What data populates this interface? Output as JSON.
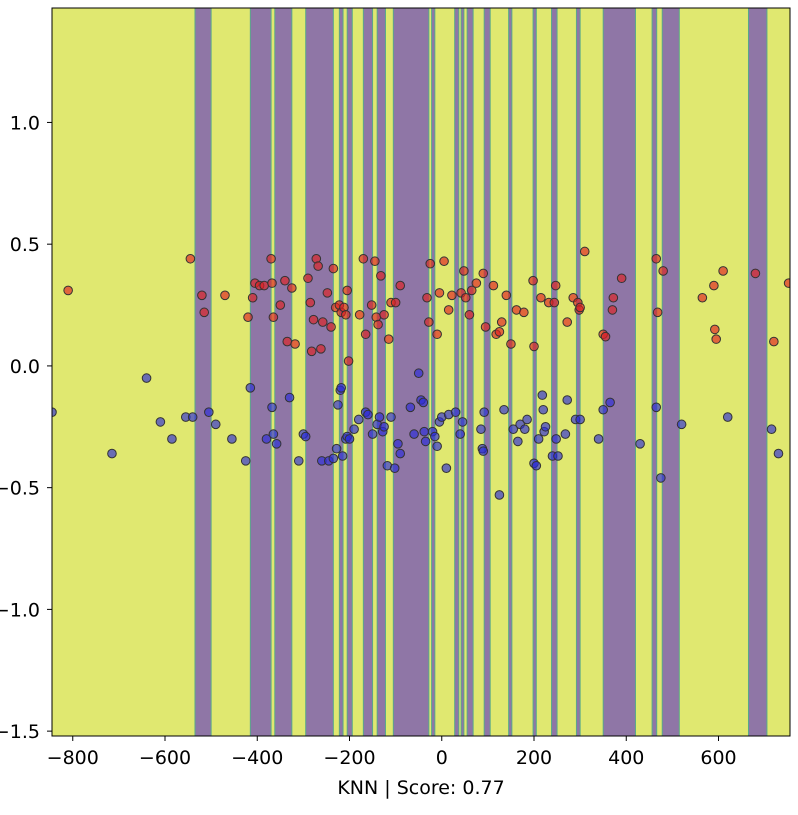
{
  "chart_data": {
    "type": "scatter",
    "title": "",
    "xlabel": "KNN | Score: 0.77",
    "ylabel": "",
    "xlim": [
      -845,
      755
    ],
    "ylim": [
      -1.52,
      1.47
    ],
    "xticks": [
      -800,
      -600,
      -400,
      -200,
      0,
      200,
      400,
      600
    ],
    "xtick_labels": [
      "−800",
      "−600",
      "−400",
      "−200",
      "0",
      "200",
      "400",
      "600"
    ],
    "yticks": [
      -1.5,
      -1.0,
      -0.5,
      0.0,
      0.5,
      1.0
    ],
    "ytick_labels": [
      "−1.5",
      "−1.0",
      "−0.5",
      "0.0",
      "0.5",
      "1.0"
    ],
    "grid": false,
    "colors": {
      "region_class_0": "#e0e870",
      "region_class_1": "#8f76a6",
      "boundary": "#5aa88a",
      "point_class_0": "#2b2bd8",
      "point_class_1": "#e02020",
      "point_edge": "#333333"
    },
    "decision_regions_class_1": [
      [
        -535,
        -500
      ],
      [
        -415,
        -370
      ],
      [
        -362,
        -325
      ],
      [
        -295,
        -235
      ],
      [
        -222,
        -214
      ],
      [
        -205,
        -194
      ],
      [
        -170,
        -150
      ],
      [
        -140,
        -122
      ],
      [
        -105,
        -28
      ],
      [
        -22,
        -15
      ],
      [
        28,
        37
      ],
      [
        42,
        48
      ],
      [
        55,
        68
      ],
      [
        92,
        105
      ],
      [
        145,
        152
      ],
      [
        198,
        205
      ],
      [
        238,
        250
      ],
      [
        292,
        300
      ],
      [
        350,
        420
      ],
      [
        456,
        466
      ],
      [
        478,
        515
      ],
      [
        665,
        705
      ]
    ],
    "series": [
      {
        "class": 1,
        "points": [
          [
            -810,
            0.31
          ],
          [
            -545,
            0.44
          ],
          [
            -520,
            0.29
          ],
          [
            -515,
            0.22
          ],
          [
            -470,
            0.29
          ],
          [
            -420,
            0.2
          ],
          [
            -410,
            0.28
          ],
          [
            -405,
            0.34
          ],
          [
            -395,
            0.33
          ],
          [
            -385,
            0.33
          ],
          [
            -370,
            0.44
          ],
          [
            -368,
            0.34
          ],
          [
            -365,
            0.2
          ],
          [
            -350,
            0.25
          ],
          [
            -340,
            0.35
          ],
          [
            -335,
            0.1
          ],
          [
            -325,
            0.32
          ],
          [
            -318,
            0.09
          ],
          [
            -290,
            0.36
          ],
          [
            -285,
            0.26
          ],
          [
            -282,
            0.06
          ],
          [
            -278,
            0.19
          ],
          [
            -272,
            0.44
          ],
          [
            -268,
            0.41
          ],
          [
            -262,
            0.07
          ],
          [
            -258,
            0.18
          ],
          [
            -248,
            0.3
          ],
          [
            -240,
            0.16
          ],
          [
            -235,
            0.4
          ],
          [
            -230,
            0.24
          ],
          [
            -222,
            0.25
          ],
          [
            -218,
            0.22
          ],
          [
            -212,
            0.24
          ],
          [
            -208,
            0.21
          ],
          [
            -205,
            0.31
          ],
          [
            -202,
            0.02
          ],
          [
            -178,
            0.21
          ],
          [
            -170,
            0.44
          ],
          [
            -165,
            0.13
          ],
          [
            -152,
            0.25
          ],
          [
            -145,
            0.43
          ],
          [
            -142,
            0.2
          ],
          [
            -138,
            0.17
          ],
          [
            -132,
            0.37
          ],
          [
            -125,
            0.21
          ],
          [
            -115,
            0.11
          ],
          [
            -110,
            0.26
          ],
          [
            -100,
            0.26
          ],
          [
            -90,
            0.33
          ],
          [
            -32,
            0.28
          ],
          [
            -28,
            0.18
          ],
          [
            -25,
            0.42
          ],
          [
            -10,
            0.13
          ],
          [
            -5,
            0.3
          ],
          [
            5,
            0.43
          ],
          [
            15,
            0.23
          ],
          [
            22,
            0.29
          ],
          [
            42,
            0.3
          ],
          [
            48,
            0.39
          ],
          [
            52,
            0.28
          ],
          [
            60,
            0.21
          ],
          [
            65,
            0.31
          ],
          [
            75,
            0.34
          ],
          [
            90,
            0.38
          ],
          [
            95,
            0.16
          ],
          [
            112,
            0.33
          ],
          [
            118,
            0.13
          ],
          [
            125,
            0.14
          ],
          [
            130,
            0.18
          ],
          [
            140,
            0.29
          ],
          [
            150,
            0.09
          ],
          [
            162,
            0.23
          ],
          [
            178,
            0.22
          ],
          [
            198,
            0.35
          ],
          [
            200,
            0.08
          ],
          [
            215,
            0.28
          ],
          [
            232,
            0.26
          ],
          [
            244,
            0.26
          ],
          [
            247,
            0.33
          ],
          [
            272,
            0.18
          ],
          [
            285,
            0.28
          ],
          [
            295,
            0.26
          ],
          [
            298,
            0.23
          ],
          [
            300,
            0.24
          ],
          [
            310,
            0.47
          ],
          [
            350,
            0.13
          ],
          [
            355,
            0.12
          ],
          [
            370,
            0.23
          ],
          [
            372,
            0.28
          ],
          [
            390,
            0.36
          ],
          [
            465,
            0.44
          ],
          [
            468,
            0.22
          ],
          [
            480,
            0.39
          ],
          [
            565,
            0.28
          ],
          [
            590,
            0.33
          ],
          [
            592,
            0.15
          ],
          [
            595,
            0.11
          ],
          [
            610,
            0.39
          ],
          [
            680,
            0.38
          ],
          [
            720,
            0.1
          ],
          [
            752,
            0.34
          ]
        ]
      },
      {
        "class": 0,
        "points": [
          [
            -845,
            -0.19
          ],
          [
            -715,
            -0.36
          ],
          [
            -640,
            -0.05
          ],
          [
            -610,
            -0.23
          ],
          [
            -585,
            -0.3
          ],
          [
            -555,
            -0.21
          ],
          [
            -540,
            -0.21
          ],
          [
            -505,
            -0.19
          ],
          [
            -490,
            -0.24
          ],
          [
            -455,
            -0.3
          ],
          [
            -425,
            -0.39
          ],
          [
            -415,
            -0.09
          ],
          [
            -380,
            -0.3
          ],
          [
            -368,
            -0.17
          ],
          [
            -365,
            -0.28
          ],
          [
            -358,
            -0.32
          ],
          [
            -330,
            -0.13
          ],
          [
            -310,
            -0.39
          ],
          [
            -300,
            -0.28
          ],
          [
            -295,
            -0.29
          ],
          [
            -260,
            -0.39
          ],
          [
            -245,
            -0.39
          ],
          [
            -235,
            -0.38
          ],
          [
            -228,
            -0.34
          ],
          [
            -225,
            -0.16
          ],
          [
            -220,
            -0.1
          ],
          [
            -218,
            -0.09
          ],
          [
            -215,
            -0.37
          ],
          [
            -208,
            -0.3
          ],
          [
            -205,
            -0.29
          ],
          [
            -200,
            -0.3
          ],
          [
            -190,
            -0.26
          ],
          [
            -180,
            -0.22
          ],
          [
            -165,
            -0.19
          ],
          [
            -160,
            -0.2
          ],
          [
            -150,
            -0.28
          ],
          [
            -140,
            -0.24
          ],
          [
            -135,
            -0.21
          ],
          [
            -128,
            -0.27
          ],
          [
            -125,
            -0.25
          ],
          [
            -118,
            -0.41
          ],
          [
            -110,
            -0.21
          ],
          [
            -102,
            -0.42
          ],
          [
            -95,
            -0.32
          ],
          [
            -90,
            -0.36
          ],
          [
            -68,
            -0.17
          ],
          [
            -60,
            -0.28
          ],
          [
            -50,
            -0.03
          ],
          [
            -45,
            -0.14
          ],
          [
            -40,
            -0.15
          ],
          [
            -38,
            -0.27
          ],
          [
            -35,
            -0.31
          ],
          [
            -20,
            -0.27
          ],
          [
            -15,
            -0.29
          ],
          [
            -10,
            -0.33
          ],
          [
            -5,
            -0.23
          ],
          [
            0,
            -0.21
          ],
          [
            10,
            -0.42
          ],
          [
            15,
            -0.2
          ],
          [
            30,
            -0.19
          ],
          [
            40,
            -0.28
          ],
          [
            45,
            -0.23
          ],
          [
            85,
            -0.26
          ],
          [
            88,
            -0.34
          ],
          [
            90,
            -0.35
          ],
          [
            92,
            -0.19
          ],
          [
            125,
            -0.53
          ],
          [
            135,
            -0.18
          ],
          [
            155,
            -0.26
          ],
          [
            165,
            -0.31
          ],
          [
            170,
            -0.24
          ],
          [
            180,
            -0.26
          ],
          [
            185,
            -0.22
          ],
          [
            200,
            -0.4
          ],
          [
            205,
            -0.41
          ],
          [
            210,
            -0.3
          ],
          [
            218,
            -0.12
          ],
          [
            220,
            -0.18
          ],
          [
            222,
            -0.27
          ],
          [
            225,
            -0.25
          ],
          [
            240,
            -0.37
          ],
          [
            248,
            -0.3
          ],
          [
            252,
            -0.37
          ],
          [
            268,
            -0.28
          ],
          [
            272,
            -0.14
          ],
          [
            290,
            -0.22
          ],
          [
            300,
            -0.22
          ],
          [
            340,
            -0.3
          ],
          [
            350,
            -0.18
          ],
          [
            365,
            -0.15
          ],
          [
            430,
            -0.32
          ],
          [
            465,
            -0.17
          ],
          [
            475,
            -0.46
          ],
          [
            520,
            -0.24
          ],
          [
            620,
            -0.21
          ],
          [
            715,
            -0.26
          ],
          [
            730,
            -0.36
          ]
        ]
      }
    ]
  }
}
